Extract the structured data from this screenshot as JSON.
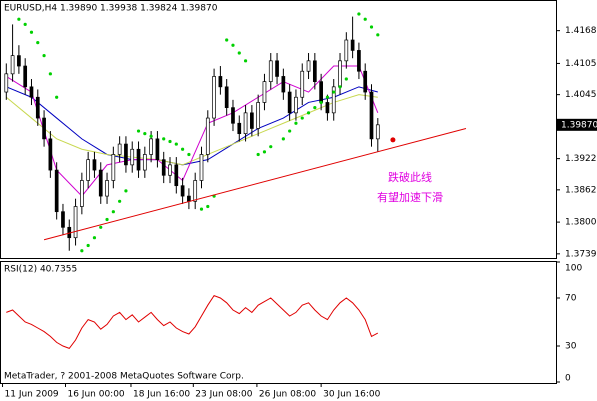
{
  "chart_data": [
    {
      "type": "candlestick",
      "title": "EURUSD,H4  1.39890 1.39938 1.39824 1.39870",
      "xlim": [
        -1,
        87.3
      ],
      "ylim": [
        1.3731,
        1.4225
      ],
      "yticks": [
        {
          "value": 1.4168,
          "label": "1.41680"
        },
        {
          "value": 1.4105,
          "label": "1.41050"
        },
        {
          "value": 1.4045,
          "label": "1.40450"
        },
        {
          "value": 1.3922,
          "label": "1.39220"
        },
        {
          "value": 1.3862,
          "label": "1.38620"
        },
        {
          "value": 1.38,
          "label": "1.38000"
        },
        {
          "value": 1.3739,
          "label": "1.37390"
        }
      ],
      "current_price": {
        "value": 1.3987,
        "label": "1.39870"
      },
      "open": [
        1.405,
        1.4085,
        1.412,
        1.41,
        1.406,
        1.404,
        1.4,
        1.396,
        1.39,
        1.382,
        1.379,
        1.377,
        1.383,
        1.388,
        1.392,
        1.39,
        1.385,
        1.388,
        1.393,
        1.395,
        1.391,
        1.394,
        1.39,
        1.393,
        1.396,
        1.392,
        1.389,
        1.391,
        1.387,
        1.385,
        1.384,
        1.388,
        1.393,
        1.4,
        1.408,
        1.406,
        1.402,
        1.399,
        1.397,
        1.401,
        1.398,
        1.403,
        1.407,
        1.411,
        1.408,
        1.405,
        1.401,
        1.404,
        1.409,
        1.411,
        1.407,
        1.403,
        1.401,
        1.406,
        1.411,
        1.415,
        1.413,
        1.409,
        1.405,
        1.396
      ],
      "high": [
        1.4105,
        1.418,
        1.414,
        1.4115,
        1.4075,
        1.4055,
        1.4015,
        1.3975,
        1.3915,
        1.3835,
        1.3805,
        1.3845,
        1.3895,
        1.3935,
        1.3935,
        1.3915,
        1.3895,
        1.3945,
        1.3965,
        1.3965,
        1.3955,
        1.3955,
        1.3945,
        1.3975,
        1.3975,
        1.3935,
        1.3925,
        1.3925,
        1.3885,
        1.3865,
        1.3895,
        1.3945,
        1.4015,
        1.4095,
        1.41,
        1.4075,
        1.4035,
        1.4005,
        1.4025,
        1.4025,
        1.4045,
        1.4085,
        1.4125,
        1.4125,
        1.4095,
        1.4065,
        1.4055,
        1.4105,
        1.4125,
        1.4125,
        1.4085,
        1.4045,
        1.4075,
        1.4125,
        1.4165,
        1.4195,
        1.4145,
        1.4105,
        1.4065,
        1.4
      ],
      "low": [
        1.4035,
        1.407,
        1.4085,
        1.4045,
        1.4025,
        1.3985,
        1.3945,
        1.3885,
        1.3805,
        1.3775,
        1.3745,
        1.3755,
        1.3815,
        1.3865,
        1.3885,
        1.3835,
        1.3835,
        1.3865,
        1.3915,
        1.3895,
        1.3895,
        1.3885,
        1.3885,
        1.3915,
        1.3905,
        1.3875,
        1.3875,
        1.3855,
        1.3835,
        1.3825,
        1.3825,
        1.3865,
        1.3915,
        1.3985,
        1.4045,
        1.4005,
        1.3975,
        1.3955,
        1.3955,
        1.3965,
        1.3965,
        1.4015,
        1.4055,
        1.4065,
        1.4035,
        1.3995,
        1.3995,
        1.4025,
        1.4075,
        1.4055,
        1.4015,
        1.3995,
        1.3995,
        1.4045,
        1.4095,
        1.4115,
        1.4075,
        1.4035,
        1.3945,
        1.3935
      ],
      "close": [
        1.4085,
        1.412,
        1.41,
        1.406,
        1.404,
        1.4,
        1.396,
        1.39,
        1.382,
        1.379,
        1.377,
        1.383,
        1.388,
        1.392,
        1.39,
        1.385,
        1.388,
        1.393,
        1.395,
        1.391,
        1.394,
        1.39,
        1.393,
        1.396,
        1.392,
        1.389,
        1.391,
        1.387,
        1.385,
        1.384,
        1.388,
        1.393,
        1.4,
        1.408,
        1.406,
        1.402,
        1.399,
        1.397,
        1.401,
        1.398,
        1.403,
        1.407,
        1.411,
        1.408,
        1.405,
        1.401,
        1.404,
        1.409,
        1.411,
        1.407,
        1.403,
        1.401,
        1.406,
        1.411,
        1.415,
        1.413,
        1.409,
        1.405,
        1.396,
        1.3987
      ],
      "overlays": [
        {
          "color": "#0000c0",
          "x": [
            0,
            4,
            8,
            12,
            16,
            20,
            24,
            28,
            32,
            36,
            40,
            44,
            48,
            52,
            56,
            59
          ],
          "values": [
            1.406,
            1.404,
            1.4,
            1.396,
            1.393,
            1.392,
            1.392,
            1.391,
            1.392,
            1.395,
            1.398,
            1.4,
            1.403,
            1.404,
            1.406,
            1.405
          ]
        },
        {
          "color": "#c8d850",
          "x": [
            0,
            4,
            8,
            12,
            16,
            20,
            24,
            28,
            32,
            36,
            40,
            44,
            48,
            52,
            56,
            59
          ],
          "values": [
            1.404,
            1.4,
            1.396,
            1.394,
            1.393,
            1.3925,
            1.392,
            1.391,
            1.393,
            1.395,
            1.397,
            1.399,
            1.401,
            1.403,
            1.4045,
            1.404
          ]
        },
        {
          "color": "#d000d0",
          "x": [
            0,
            4,
            8,
            12,
            16,
            20,
            24,
            28,
            32,
            36,
            40,
            44,
            48,
            52,
            56,
            59
          ],
          "values": [
            1.408,
            1.405,
            1.39,
            1.385,
            1.391,
            1.392,
            1.392,
            1.388,
            1.399,
            1.401,
            1.404,
            1.407,
            1.405,
            1.41,
            1.41,
            1.401
          ]
        }
      ],
      "sar": {
        "color": "#00d000",
        "x": [
          2,
          3,
          4,
          5,
          6,
          7,
          8,
          12,
          13,
          14,
          15,
          16,
          17,
          18,
          19,
          21,
          22,
          23,
          25,
          26,
          27,
          28,
          29,
          31,
          32,
          33,
          35,
          36,
          37,
          38,
          40,
          41,
          42,
          44,
          45,
          46,
          47,
          48,
          49,
          50,
          51,
          52,
          53,
          54,
          56,
          57,
          58,
          59
        ],
        "values": [
          1.419,
          1.418,
          1.4165,
          1.4145,
          1.412,
          1.4085,
          1.404,
          1.3745,
          1.3755,
          1.377,
          1.379,
          1.3805,
          1.382,
          1.384,
          1.386,
          1.3975,
          1.397,
          1.3965,
          1.396,
          1.3955,
          1.395,
          1.394,
          1.393,
          1.3825,
          1.383,
          1.385,
          1.415,
          1.414,
          1.4125,
          1.411,
          1.393,
          1.3935,
          1.3945,
          1.396,
          1.3975,
          1.399,
          1.4,
          1.401,
          1.402,
          1.403,
          1.404,
          1.405,
          1.406,
          1.4075,
          1.42,
          1.419,
          1.4175,
          1.416
        ]
      },
      "trendline": {
        "color": "#e00000",
        "x": [
          6,
          73
        ],
        "values": [
          1.3766,
          1.398
        ]
      },
      "marker": {
        "color": "#e00000",
        "x": 61.4,
        "value": 1.3958
      },
      "annotations": [
        "跌破此线",
        "有望加速下滑"
      ],
      "annotation_color": "#e000e0"
    },
    {
      "type": "line",
      "title": "RSI(12) 40.7355",
      "color": "#e00000",
      "xlim": [
        -1,
        87.3
      ],
      "ylim": [
        0,
        100
      ],
      "yticks": [
        100,
        70,
        30,
        0
      ],
      "xticks": [
        {
          "value": -0.6,
          "label": "11 Jun 2009"
        },
        {
          "value": 9.4,
          "label": "16 Jun 00:00"
        },
        {
          "value": 19.8,
          "label": "18 Jun 16:00"
        },
        {
          "value": 29.7,
          "label": "23 Jun 08:00"
        },
        {
          "value": 39.8,
          "label": "26 Jun 08:00"
        },
        {
          "value": 50,
          "label": "30 Jun 16:00"
        }
      ],
      "values": [
        58,
        60,
        55,
        50,
        48,
        45,
        42,
        38,
        33,
        30,
        28,
        35,
        45,
        52,
        50,
        44,
        48,
        55,
        58,
        52,
        56,
        50,
        54,
        58,
        52,
        47,
        50,
        45,
        42,
        40,
        46,
        55,
        64,
        72,
        70,
        66,
        60,
        57,
        62,
        58,
        64,
        67,
        70,
        65,
        60,
        55,
        58,
        64,
        66,
        60,
        55,
        52,
        60,
        66,
        70,
        66,
        60,
        52,
        38,
        40.7355
      ],
      "footer": "MetaTrader, ? 2001-2008 MetaQuotes Software Corp."
    }
  ]
}
